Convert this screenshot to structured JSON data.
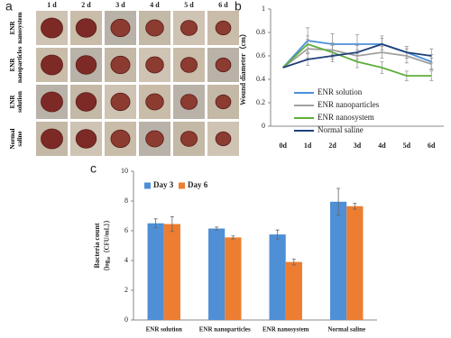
{
  "figure_a": {
    "panel_label": "a",
    "column_labels": [
      "1 d",
      "2 d",
      "3 d",
      "4 d",
      "5 d",
      "6 d"
    ],
    "row_labels": [
      "ENR nanosystem",
      "ENR nanoparticles",
      "ENR solution",
      "Normal saline"
    ]
  },
  "chart_data": [
    {
      "type": "line",
      "panel_label": "b",
      "y_label": "Wound diameter（cm）",
      "categories": [
        "0d",
        "1d",
        "2d",
        "3d",
        "4d",
        "5d",
        "6d"
      ],
      "ylim": [
        0,
        1
      ],
      "yticks": [
        0,
        0.2,
        0.4,
        0.6,
        0.8,
        1
      ],
      "legend": "lower left",
      "series": [
        {
          "name": "ENR solution",
          "color": "#4a90d9",
          "values": [
            0.5,
            0.73,
            0.7,
            0.7,
            0.7,
            0.63,
            0.55
          ],
          "errors": [
            0,
            0.11,
            0.09,
            0.08,
            0.07,
            0.05,
            0.06
          ]
        },
        {
          "name": "ENR nanoparticles",
          "color": "#a0a0a0",
          "values": [
            0.5,
            0.66,
            0.65,
            0.6,
            0.63,
            0.6,
            0.53
          ],
          "errors": [
            0,
            0.08,
            0.06,
            0.05,
            0.05,
            0.06,
            0.05
          ]
        },
        {
          "name": "ENR nanosystem",
          "color": "#5fae3a",
          "values": [
            0.5,
            0.7,
            0.63,
            0.55,
            0.5,
            0.43,
            0.43
          ],
          "errors": [
            0,
            0.07,
            0.06,
            0.05,
            0.05,
            0.04,
            0.04
          ]
        },
        {
          "name": "Normal saline",
          "color": "#1f3f7a",
          "values": [
            0.5,
            0.57,
            0.6,
            0.63,
            0.7,
            0.63,
            0.6
          ],
          "errors": [
            0,
            0.05,
            0.05,
            0.06,
            0.05,
            0.05,
            0.06
          ]
        }
      ]
    },
    {
      "type": "bar",
      "panel_label": "c",
      "y_label": "Bacteria count",
      "y_sublabel": "（log₁₀（CFU/mL））",
      "categories": [
        "ENR solution",
        "ENR nanoparticles",
        "ENR nanosystem",
        "Normal saline"
      ],
      "ylim": [
        0,
        10
      ],
      "yticks": [
        0,
        2,
        4,
        6,
        8,
        10
      ],
      "legend": "upper left",
      "series": [
        {
          "name": "Day 3",
          "color": "#4e8fd6",
          "values": [
            6.5,
            6.15,
            5.75,
            7.95
          ],
          "errors": [
            0.3,
            0.1,
            0.3,
            0.9
          ]
        },
        {
          "name": "Day 6",
          "color": "#ed7d31",
          "values": [
            6.45,
            5.55,
            3.9,
            7.65
          ],
          "errors": [
            0.5,
            0.1,
            0.2,
            0.2
          ]
        }
      ]
    }
  ]
}
